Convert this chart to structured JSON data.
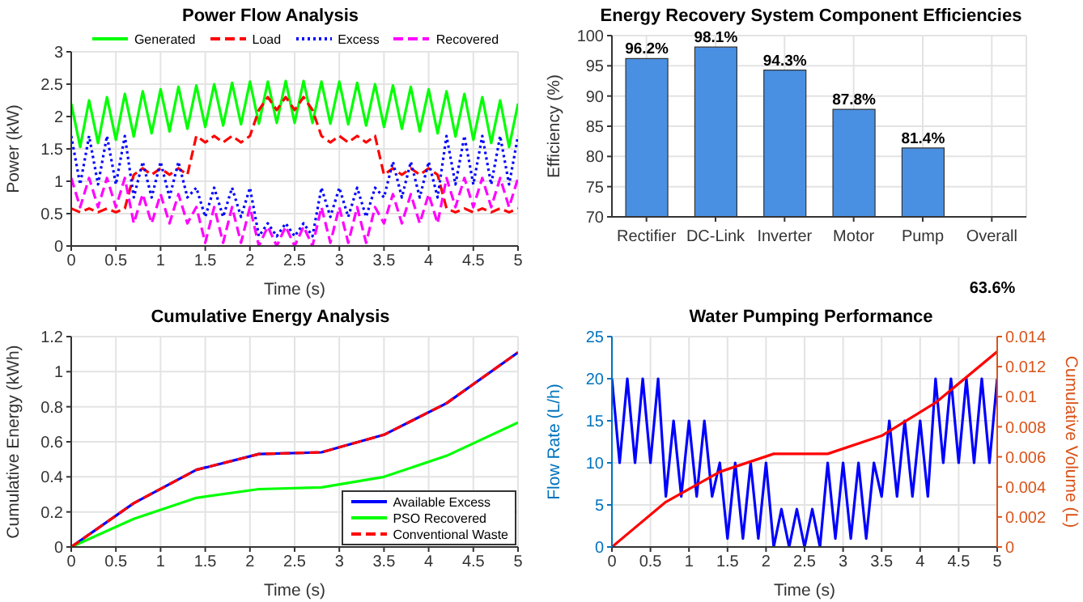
{
  "chart_data": [
    {
      "type": "line",
      "title": "Power Flow Analysis",
      "xlabel": "Time (s)",
      "ylabel": "Power (kW)",
      "xlim": [
        0,
        5
      ],
      "xticks": [
        0,
        0.5,
        1,
        1.5,
        2,
        2.5,
        3,
        3.5,
        4,
        4.5,
        5
      ],
      "ylim": [
        0,
        3
      ],
      "yticks": [
        0,
        0.5,
        1,
        1.5,
        2,
        2.5,
        3
      ],
      "grid": true,
      "legend": "top",
      "x": [
        0,
        0.1,
        0.2,
        0.3,
        0.4,
        0.5,
        0.6,
        0.7,
        0.8,
        0.9,
        1,
        1.1,
        1.2,
        1.3,
        1.4,
        1.5,
        1.6,
        1.7,
        1.8,
        1.9,
        2,
        2.1,
        2.2,
        2.3,
        2.4,
        2.5,
        2.6,
        2.7,
        2.8,
        2.9,
        3,
        3.1,
        3.2,
        3.3,
        3.4,
        3.5,
        3.6,
        3.7,
        3.8,
        3.9,
        4,
        4.1,
        4.2,
        4.3,
        4.4,
        4.5,
        4.6,
        4.7,
        4.8,
        4.9,
        5
      ],
      "series": [
        {
          "name": "Generated",
          "color": "#00ff00",
          "line_style": "solid",
          "values": [
            2.2,
            1.53,
            2.25,
            1.59,
            2.3,
            1.64,
            2.35,
            1.69,
            2.39,
            1.74,
            2.42,
            1.77,
            2.46,
            1.81,
            2.48,
            1.84,
            2.5,
            1.86,
            2.52,
            1.88,
            2.54,
            1.89,
            2.54,
            1.9,
            2.55,
            1.9,
            2.55,
            1.9,
            2.54,
            1.89,
            2.54,
            1.88,
            2.52,
            1.86,
            2.5,
            1.84,
            2.48,
            1.81,
            2.46,
            1.77,
            2.42,
            1.74,
            2.39,
            1.69,
            2.35,
            1.64,
            2.3,
            1.59,
            2.25,
            1.53,
            2.2
          ]
        },
        {
          "name": "Load",
          "color": "#ff0000",
          "line_style": "dashed",
          "values": [
            0.58,
            0.52,
            0.58,
            0.52,
            0.58,
            0.52,
            0.58,
            1.1,
            1.2,
            1.1,
            1.2,
            1.1,
            1.2,
            1.1,
            1.7,
            1.6,
            1.7,
            1.6,
            1.7,
            1.6,
            1.7,
            2.1,
            2.3,
            2.1,
            2.3,
            2.1,
            2.3,
            2.1,
            1.7,
            1.6,
            1.7,
            1.6,
            1.7,
            1.6,
            1.7,
            1.1,
            1.2,
            1.1,
            1.2,
            1.1,
            1.2,
            1.1,
            0.58,
            0.52,
            0.58,
            0.52,
            0.58,
            0.52,
            0.58,
            0.52,
            0.58
          ]
        },
        {
          "name": "Excess",
          "color": "#0000ff",
          "line_style": "dotted",
          "values": [
            1.7,
            0.95,
            1.7,
            0.95,
            1.7,
            0.95,
            1.7,
            0.75,
            1.3,
            0.75,
            1.3,
            0.75,
            1.3,
            0.75,
            0.9,
            0.45,
            0.9,
            0.45,
            0.9,
            0.45,
            0.9,
            0.15,
            0.35,
            0.15,
            0.35,
            0.15,
            0.35,
            0.15,
            0.9,
            0.45,
            0.9,
            0.45,
            0.9,
            0.45,
            0.9,
            0.75,
            1.3,
            0.75,
            1.3,
            0.75,
            1.3,
            0.75,
            1.7,
            0.95,
            1.7,
            0.95,
            1.7,
            0.95,
            1.7,
            0.95,
            1.7
          ]
        },
        {
          "name": "Recovered",
          "color": "#ff00ff",
          "line_style": "dashed",
          "values": [
            1.05,
            0.6,
            1.05,
            0.6,
            1.05,
            0.6,
            1.05,
            0.35,
            0.8,
            0.35,
            0.8,
            0.35,
            0.8,
            0.35,
            0.6,
            0.05,
            0.6,
            0.05,
            0.6,
            0.05,
            0.6,
            0,
            0.3,
            0,
            0.3,
            0,
            0.3,
            0,
            0.6,
            0.05,
            0.6,
            0.05,
            0.6,
            0.05,
            0.6,
            0.35,
            0.8,
            0.35,
            0.8,
            0.35,
            0.8,
            0.35,
            1.05,
            0.6,
            1.05,
            0.6,
            1.05,
            0.6,
            1.05,
            0.6,
            1.05
          ]
        }
      ]
    },
    {
      "type": "bar",
      "title": "Energy Recovery System Component Efficiencies",
      "ylabel": "Efficiency (%)",
      "categories": [
        "Rectifier",
        "DC-Link",
        "Inverter",
        "Motor",
        "Pump",
        "Overall"
      ],
      "values": [
        96.2,
        98.1,
        94.3,
        87.8,
        81.4,
        null
      ],
      "value_labels": [
        "96.2%",
        "98.1%",
        "94.3%",
        "87.8%",
        "81.4%",
        null
      ],
      "color": "#4a90e2",
      "ylim": [
        70,
        100
      ],
      "yticks": [
        70,
        75,
        80,
        85,
        90,
        95,
        100
      ],
      "grid": true,
      "annotations": [
        "63.6%"
      ]
    },
    {
      "type": "line",
      "title": "Cumulative Energy Analysis",
      "xlabel": "Time (s)",
      "ylabel": "Cumulative Energy (kWh)",
      "xlim": [
        0,
        5
      ],
      "xticks": [
        0,
        0.5,
        1,
        1.5,
        2,
        2.5,
        3,
        3.5,
        4,
        4.5,
        5
      ],
      "ylim": [
        0,
        1.2
      ],
      "yticks": [
        0,
        0.2,
        0.4,
        0.6,
        0.8,
        1,
        1.2
      ],
      "grid": true,
      "legend": "bottom right",
      "x": [
        0,
        0.7,
        1.4,
        2.1,
        2.8,
        3.5,
        4.2,
        5
      ],
      "series": [
        {
          "name": "Available Excess",
          "color": "#0000ff",
          "line_style": "solid",
          "values": [
            0,
            0.25,
            0.44,
            0.53,
            0.54,
            0.64,
            0.82,
            1.11
          ]
        },
        {
          "name": "PSO Recovered",
          "color": "#00ff00",
          "line_style": "solid",
          "values": [
            0,
            0.16,
            0.28,
            0.33,
            0.34,
            0.4,
            0.52,
            0.71
          ]
        },
        {
          "name": "Conventional Waste",
          "color": "#ff0000",
          "line_style": "dashed",
          "values": [
            0,
            0.25,
            0.44,
            0.53,
            0.54,
            0.64,
            0.82,
            1.11
          ]
        }
      ]
    },
    {
      "type": "line",
      "title": "Water Pumping Performance",
      "xlabel": "Time (s)",
      "ylabel": "Flow Rate (L/h)",
      "y2label": "Cumulative Volume (L)",
      "xlim": [
        0,
        5
      ],
      "xticks": [
        0,
        0.5,
        1,
        1.5,
        2,
        2.5,
        3,
        3.5,
        4,
        4.5,
        5
      ],
      "ylim": [
        0,
        25
      ],
      "yticks": [
        0,
        5,
        10,
        15,
        20,
        25
      ],
      "y2lim": [
        0,
        0.014
      ],
      "y2ticks": [
        0,
        0.002,
        0.004,
        0.006,
        0.008,
        0.01,
        0.012,
        0.014
      ],
      "grid": true,
      "series": [
        {
          "color": "#0000ff",
          "line_style": "solid",
          "x": [
            0,
            0.1,
            0.2,
            0.3,
            0.4,
            0.5,
            0.6,
            0.7,
            0.8,
            0.9,
            1,
            1.1,
            1.2,
            1.3,
            1.4,
            1.5,
            1.6,
            1.7,
            1.8,
            1.9,
            2,
            2.1,
            2.2,
            2.3,
            2.4,
            2.5,
            2.6,
            2.7,
            2.8,
            2.9,
            3,
            3.1,
            3.2,
            3.3,
            3.4,
            3.5,
            3.6,
            3.7,
            3.8,
            3.9,
            4,
            4.1,
            4.2,
            4.3,
            4.4,
            4.5,
            4.6,
            4.7,
            4.8,
            4.9,
            5
          ],
          "values": [
            20,
            10,
            20,
            10,
            20,
            10,
            20,
            6,
            15,
            6,
            15,
            6,
            15,
            6,
            10,
            1,
            10,
            1,
            10,
            1,
            10,
            0,
            4.5,
            0,
            4.5,
            0,
            4.5,
            0,
            10,
            1,
            10,
            1,
            10,
            1,
            10,
            6,
            15,
            6,
            15,
            6,
            15,
            6,
            20,
            10,
            20,
            10,
            20,
            10,
            20,
            10,
            20
          ]
        },
        {
          "color": "#ff0000",
          "line_style": "solid",
          "axis": "y2",
          "x": [
            0,
            0.7,
            1.4,
            2.1,
            2.8,
            3.5,
            4.2,
            5
          ],
          "values": [
            0,
            0.003,
            0.005,
            0.0062,
            0.0062,
            0.0074,
            0.0096,
            0.013
          ]
        }
      ]
    }
  ]
}
